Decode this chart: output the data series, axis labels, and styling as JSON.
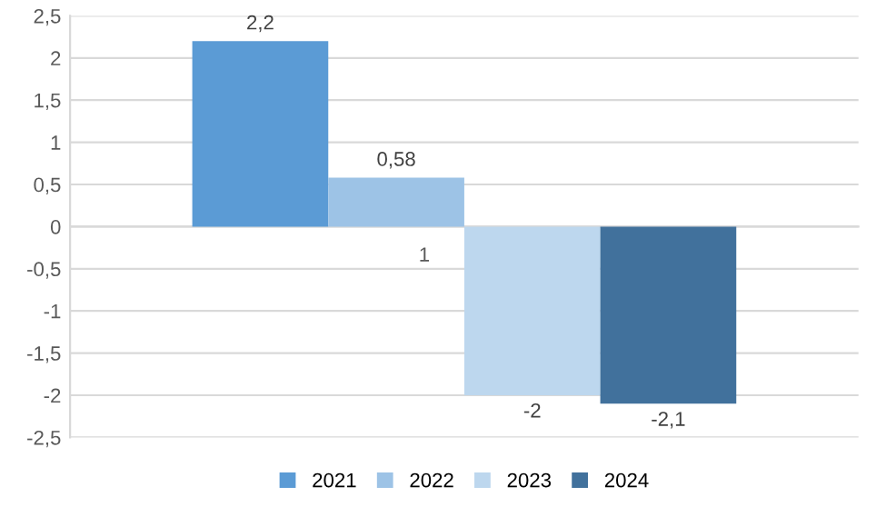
{
  "chart_data": {
    "type": "bar",
    "categories": [
      "1"
    ],
    "series": [
      {
        "name": "2021",
        "color": "#5b9bd5",
        "values": [
          2.2
        ],
        "value_labels": [
          "2,2"
        ]
      },
      {
        "name": "2022",
        "color": "#9dc3e6",
        "values": [
          0.58
        ],
        "value_labels": [
          "0,58"
        ]
      },
      {
        "name": "2023",
        "color": "#bdd7ee",
        "values": [
          -2
        ],
        "value_labels": [
          "-2"
        ]
      },
      {
        "name": "2024",
        "color": "#41719c",
        "values": [
          -2.1
        ],
        "value_labels": [
          "-2,1"
        ]
      }
    ],
    "ylim": [
      -2.5,
      2.5
    ],
    "yticks": [
      {
        "value": -2.5,
        "label": "-2,5"
      },
      -2,
      {
        "value": -1.5,
        "label": "-1,5"
      },
      -1,
      {
        "value": -0.5,
        "label": "-0,5"
      },
      0,
      {
        "value": 0.5,
        "label": "0,5"
      },
      1,
      {
        "value": 1.5,
        "label": "1,5"
      },
      2,
      {
        "value": 2.5,
        "label": "2,5"
      }
    ],
    "grid": "y",
    "legend": "bottom"
  }
}
